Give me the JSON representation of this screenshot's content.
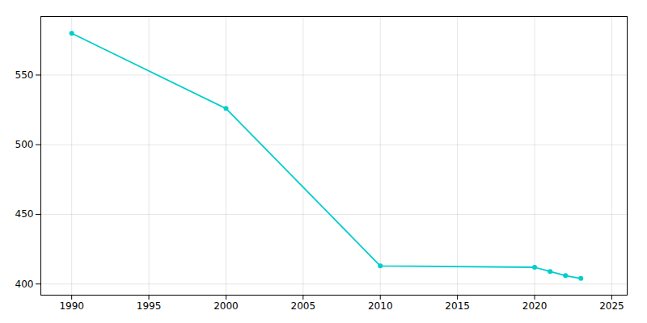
{
  "chart_data": {
    "type": "line",
    "x": [
      1990,
      2000,
      2010,
      2020,
      2021,
      2022,
      2023
    ],
    "values": [
      580,
      526,
      413,
      412,
      409,
      406,
      404
    ],
    "color": "#00CDCD",
    "marker": "circle",
    "xlim": [
      1988,
      2026
    ],
    "ylim": [
      392,
      592
    ],
    "xticks": [
      1990,
      1995,
      2000,
      2005,
      2010,
      2015,
      2020,
      2025
    ],
    "yticks": [
      400,
      450,
      500,
      550
    ],
    "grid": true
  }
}
